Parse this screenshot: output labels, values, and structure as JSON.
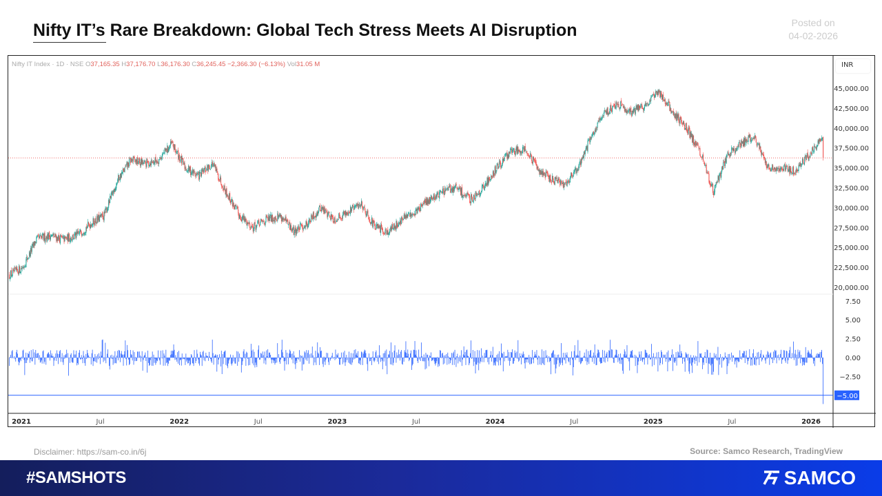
{
  "title": "Nifty IT’s Rare Breakdown: Global Tech Stress Meets AI Disruption",
  "posted": {
    "label": "Posted on",
    "date": "04-02-2026"
  },
  "legend": {
    "symbol": "Nifty IT Index · 1D · NSE",
    "o_label": "O",
    "open": "37,165.35",
    "h_label": "H",
    "high": "37,176.70",
    "l_label": "L",
    "low": "36,176.30",
    "c_label": "C",
    "close": "36,245.45",
    "change": "−2,366.30 (−6.13%)",
    "vol_label": "Vol",
    "volume": "31.05 M"
  },
  "currency": "INR",
  "disclaimer": {
    "label": "Disclaimer: ",
    "link": "https://sam-co.in/6j"
  },
  "source": "Source: Samco Research, TradingView",
  "footer": {
    "hashtag": "#SAMSHOTS",
    "brand": "SAMCO"
  },
  "colors": {
    "up": "#26a69a",
    "down": "#ef5350",
    "histogram": "#2962ff",
    "last_price_line": "#ef5350",
    "footer_start": "#141e5c",
    "footer_end": "#0a3ce8"
  },
  "chart_data": [
    {
      "type": "candlestick",
      "interval": "1D",
      "x_ticks": [
        "2021",
        "Jul",
        "2022",
        "Jul",
        "2023",
        "Jul",
        "2024",
        "Jul",
        "2025",
        "Jul",
        "2026"
      ],
      "y_ticks": [
        "45,000.00",
        "42,500.00",
        "40,000.00",
        "37,500.00",
        "35,000.00",
        "32,500.00",
        "30,000.00",
        "27,500.00",
        "25,000.00",
        "22,500.00",
        "20,000.00"
      ],
      "ylim": [
        20000,
        45500
      ],
      "monthly_close_approx": {
        "start": "2021-01",
        "values": [
          22500,
          26000,
          26500,
          26000,
          26500,
          28000,
          29000,
          33500,
          36000,
          35500,
          36000,
          38000,
          35000,
          34000,
          35500,
          32000,
          29000,
          27500,
          28500,
          29000,
          27000,
          28000,
          30000,
          28500,
          29500,
          30500,
          27500,
          27000,
          28500,
          29500,
          31000,
          32000,
          32500,
          31000,
          32500,
          35000,
          37000,
          37500,
          35000,
          33500,
          33000,
          35000,
          39000,
          42000,
          43000,
          42000,
          43000,
          44500,
          42000,
          40000,
          37000,
          32000,
          36500,
          38000,
          39000,
          35000,
          35000,
          34500,
          36500,
          38500,
          38000,
          36245.45
        ]
      },
      "last_close": 36245.45
    },
    {
      "type": "bar",
      "series_desc": "daily % change",
      "y_ticks": [
        "7.50",
        "5.00",
        "2.50",
        "0.00",
        "−2.50"
      ],
      "highlight_label": "−5.00",
      "highlight_value": -5,
      "ylim": [
        -6.5,
        8.5
      ],
      "last_value": -6.13
    }
  ]
}
